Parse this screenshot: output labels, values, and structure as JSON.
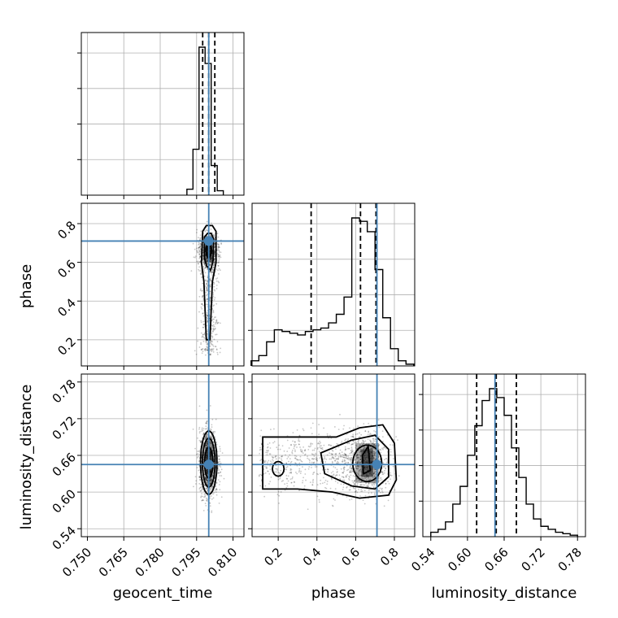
{
  "chart_data": {
    "type": "corner",
    "parameters": [
      "geocent_time",
      "phase",
      "luminosity_distance"
    ],
    "truths": {
      "geocent_time": 0.8,
      "phase": 0.71,
      "luminosity_distance": 0.645
    },
    "axis_ranges": {
      "geocent_time": [
        0.7475,
        0.8145
      ],
      "phase": [
        0.065,
        0.905
      ],
      "luminosity_distance": [
        0.527,
        0.793
      ]
    },
    "tick_labels": {
      "geocent_time": [
        "0.750",
        "0.765",
        "0.780",
        "0.795",
        "0.810"
      ],
      "phase": [
        "0.2",
        "0.4",
        "0.6",
        "0.8"
      ],
      "luminosity_distance": [
        "0.54",
        "0.60",
        "0.66",
        "0.72",
        "0.78"
      ]
    },
    "quantiles": {
      "geocent_time": [
        0.7975,
        0.8,
        0.8025
      ],
      "phase": [
        0.37,
        0.625,
        0.705
      ],
      "luminosity_distance": [
        0.615,
        0.647,
        0.68
      ]
    },
    "histograms": {
      "geocent_time": {
        "edges": [
          0.791,
          0.7935,
          0.796,
          0.7985,
          0.801,
          0.8035,
          0.806
        ],
        "counts": [
          0.04,
          0.31,
          1.0,
          0.89,
          0.2,
          0.03
        ]
      },
      "phase": {
        "edges": [
          0.06,
          0.1,
          0.14,
          0.18,
          0.22,
          0.26,
          0.3,
          0.34,
          0.38,
          0.42,
          0.46,
          0.5,
          0.54,
          0.58,
          0.62,
          0.66,
          0.7,
          0.74,
          0.78,
          0.82,
          0.86,
          0.9
        ],
        "counts": [
          0.03,
          0.06,
          0.14,
          0.21,
          0.2,
          0.19,
          0.18,
          0.2,
          0.21,
          0.22,
          0.25,
          0.3,
          0.4,
          0.86,
          0.84,
          0.78,
          0.56,
          0.28,
          0.1,
          0.03,
          0.01
        ]
      },
      "luminosity_distance": {
        "edges": [
          0.54,
          0.552,
          0.564,
          0.576,
          0.588,
          0.6,
          0.612,
          0.624,
          0.636,
          0.648,
          0.66,
          0.672,
          0.684,
          0.696,
          0.708,
          0.72,
          0.732,
          0.744,
          0.756,
          0.768,
          0.78
        ],
        "counts": [
          0.03,
          0.05,
          0.1,
          0.22,
          0.34,
          0.55,
          0.75,
          0.92,
          1.0,
          0.94,
          0.82,
          0.6,
          0.4,
          0.22,
          0.12,
          0.07,
          0.05,
          0.03,
          0.02,
          0.01
        ]
      }
    },
    "grid": true
  }
}
